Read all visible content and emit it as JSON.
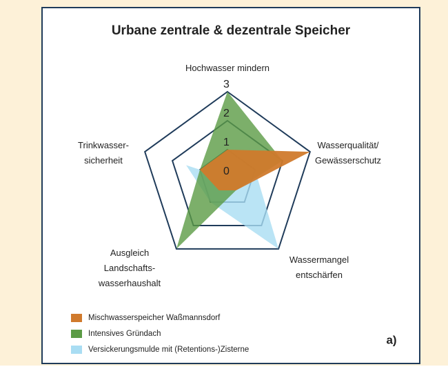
{
  "chart_data": {
    "type": "radar",
    "title": "Urbane zentrale & dezentrale Speicher",
    "categories": [
      "Hochwasser mindern",
      "Wasserqualität/\nGewässerschutz",
      "Wassermangel\nentschärfen",
      "Ausgleich\nLandschafts-\nwasserhaushalt",
      "Trinkwasser-\nsicherheit"
    ],
    "series": [
      {
        "name": "Versickerungsmulde mit (Retentions-)Zisterne",
        "color": "#a9ddf3",
        "values": [
          0,
          1,
          3,
          1,
          1.5
        ]
      },
      {
        "name": "Intensives Gründach",
        "color": "#5b9b45",
        "values": [
          3,
          2,
          0.5,
          3,
          1
        ]
      },
      {
        "name": "Mischwasserspeicher Waßmannsdorf",
        "color": "#d07a2c",
        "values": [
          1,
          3,
          0.5,
          0.5,
          1
        ]
      }
    ],
    "rlim": [
      0,
      3
    ],
    "rticks": [
      3,
      2,
      1,
      0
    ],
    "annotation": "a)"
  }
}
